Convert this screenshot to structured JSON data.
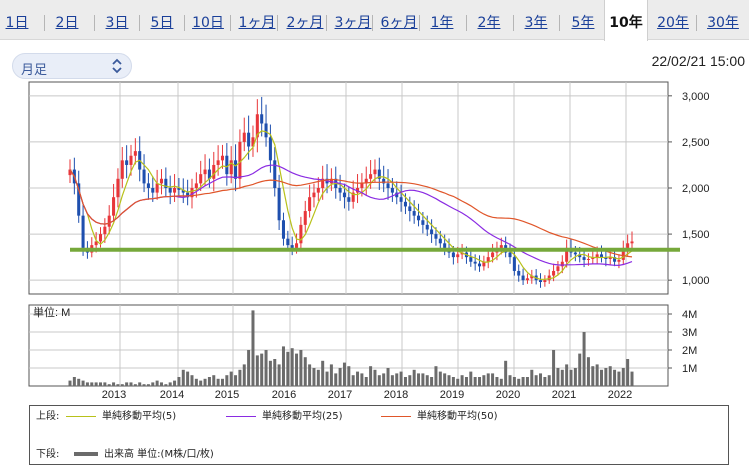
{
  "tabs": [
    {
      "label": "1日",
      "active": false
    },
    {
      "label": "2日",
      "active": false
    },
    {
      "label": "3日",
      "active": false
    },
    {
      "label": "5日",
      "active": false
    },
    {
      "label": "10日",
      "active": false
    },
    {
      "label": "1ヶ月",
      "active": false
    },
    {
      "label": "2ヶ月",
      "active": false
    },
    {
      "label": "3ヶ月",
      "active": false
    },
    {
      "label": "6ヶ月",
      "active": false
    },
    {
      "label": "1年",
      "active": false
    },
    {
      "label": "2年",
      "active": false
    },
    {
      "label": "3年",
      "active": false
    },
    {
      "label": "5年",
      "active": false
    },
    {
      "label": "10年",
      "active": true
    },
    {
      "label": "20年",
      "active": false
    },
    {
      "label": "30年",
      "active": false
    }
  ],
  "period_select": {
    "value": "月足"
  },
  "timestamp": "22/02/21 15:00",
  "colors": {
    "up": "#e8363a",
    "down": "#1e4fae",
    "ma5": "#b8c11a",
    "ma25": "#8a2be2",
    "ma50": "#e0562a",
    "support_line": "#76a83a",
    "volume": "#6b6b6b",
    "grid": "#c8c8c8",
    "tab_link": "#1a3f99"
  },
  "chart_data": {
    "type": "candlestick",
    "price_axis": {
      "ticks": [
        1000,
        1500,
        2000,
        2500,
        3000
      ],
      "tick_labels": [
        "1,000",
        "1,500",
        "2,000",
        "2,500",
        "3,000"
      ],
      "range": [
        850,
        3150
      ]
    },
    "volume_axis": {
      "unit_label": "単位: M",
      "ticks": [
        1,
        2,
        3,
        4
      ],
      "tick_labels": [
        "1M",
        "2M",
        "3M",
        "4M"
      ],
      "range": [
        0,
        4.5
      ]
    },
    "x_labels": [
      "2013",
      "2014",
      "2015",
      "2016",
      "2017",
      "2018",
      "2019",
      "2020",
      "2021",
      "2022"
    ],
    "horizontal_line": 1330,
    "series": [
      {
        "name": "単純移動平均(5)",
        "type": "ma"
      },
      {
        "name": "単純移動平均(25)",
        "type": "ma"
      },
      {
        "name": "単純移動平均(50)",
        "type": "ma"
      }
    ],
    "close": [
      2200,
      2050,
      1700,
      1350,
      1300,
      1380,
      1420,
      1500,
      1580,
      1700,
      1900,
      2100,
      2300,
      2250,
      2350,
      2400,
      2200,
      2050,
      2000,
      1950,
      2050,
      2100,
      2000,
      1950,
      2000,
      1980,
      1950,
      1900,
      2000,
      2050,
      2150,
      2200,
      2100,
      2250,
      2300,
      2350,
      2150,
      2300,
      2100,
      2500,
      2600,
      2450,
      2550,
      2800,
      2700,
      2550,
      2300,
      2000,
      1650,
      1450,
      1380,
      1350,
      1400,
      1600,
      1750,
      1900,
      1950,
      2000,
      2100,
      2050,
      2100,
      2000,
      1950,
      1900,
      1850,
      1950,
      2000,
      2050,
      2100,
      2150,
      2200,
      2100,
      2050,
      2000,
      1950,
      1900,
      1850,
      1800,
      1750,
      1700,
      1650,
      1600,
      1550,
      1500,
      1450,
      1400,
      1350,
      1300,
      1250,
      1280,
      1300,
      1250,
      1200,
      1180,
      1150,
      1200,
      1250,
      1300,
      1350,
      1380,
      1300,
      1250,
      1100,
      1050,
      1000,
      1020,
      1050,
      1000,
      980,
      1000,
      1050,
      1100,
      1150,
      1200,
      1350,
      1300,
      1280,
      1250,
      1220,
      1230,
      1250,
      1280,
      1250,
      1230,
      1250,
      1200,
      1220,
      1350,
      1400,
      1420
    ],
    "volume": [
      0.3,
      0.5,
      0.4,
      0.3,
      0.2,
      0.2,
      0.2,
      0.2,
      0.2,
      0.1,
      0.2,
      0.1,
      0.1,
      0.2,
      0.2,
      0.1,
      0.2,
      0.1,
      0.1,
      0.2,
      0.3,
      0.2,
      0.1,
      0.2,
      0.3,
      0.5,
      0.9,
      0.8,
      0.6,
      0.4,
      0.3,
      0.4,
      0.5,
      0.6,
      0.4,
      0.4,
      0.6,
      0.8,
      0.6,
      0.9,
      1.2,
      2.0,
      4.2,
      1.7,
      1.8,
      2.0,
      1.4,
      1.5,
      1.2,
      2.2,
      1.9,
      2.1,
      1.8,
      2.0,
      1.6,
      1.2,
      1.0,
      0.9,
      1.4,
      0.8,
      1.2,
      0.7,
      1.0,
      1.3,
      1.1,
      0.6,
      0.8,
      0.7,
      0.5,
      1.1,
      0.9,
      0.6,
      0.7,
      1.0,
      0.6,
      0.7,
      0.8,
      0.5,
      0.6,
      0.9,
      0.7,
      0.7,
      0.6,
      0.5,
      1.1,
      0.8,
      0.7,
      0.6,
      0.5,
      0.4,
      0.6,
      0.5,
      0.8,
      0.5,
      0.5,
      0.6,
      0.7,
      0.7,
      0.5,
      0.4,
      1.4,
      0.6,
      0.5,
      0.4,
      0.5,
      0.5,
      0.9,
      0.6,
      0.7,
      0.5,
      0.6,
      2.0,
      1.0,
      0.9,
      1.2,
      0.9,
      1.0,
      1.8,
      3.0,
      1.6,
      1.1,
      1.2,
      0.9,
      1.0,
      1.1,
      0.9,
      0.8,
      1.0,
      1.5,
      0.8
    ]
  },
  "legend": {
    "top_label": "上段:",
    "bottom_label": "下段:",
    "ma5_label": "単純移動平均(5)",
    "ma25_label": "単純移動平均(25)",
    "ma50_label": "単純移動平均(50)",
    "volume_label": "出来高 単位:(M株/口/枚)"
  }
}
